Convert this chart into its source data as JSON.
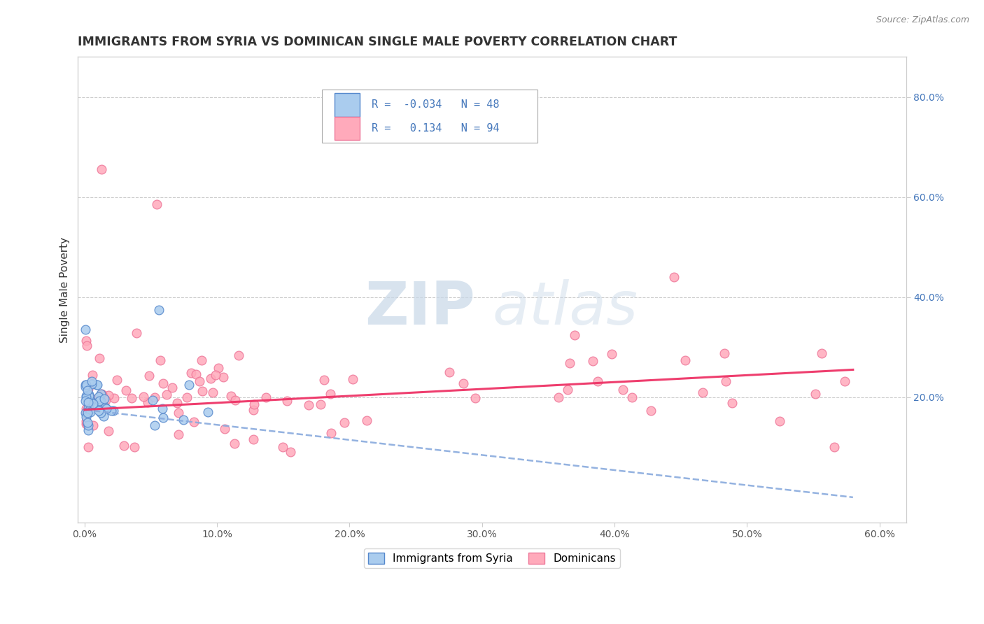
{
  "title": "IMMIGRANTS FROM SYRIA VS DOMINICAN SINGLE MALE POVERTY CORRELATION CHART",
  "source": "Source: ZipAtlas.com",
  "ylabel": "Single Male Poverty",
  "xlim": [
    -0.005,
    0.62
  ],
  "ylim": [
    -0.05,
    0.88
  ],
  "xticks": [
    0.0,
    0.1,
    0.2,
    0.3,
    0.4,
    0.5,
    0.6
  ],
  "xtick_labels": [
    "0.0%",
    "10.0%",
    "20.0%",
    "30.0%",
    "40.0%",
    "50.0%",
    "60.0%"
  ],
  "yticks_left": [
    0.2,
    0.4,
    0.6,
    0.8
  ],
  "yticks_right": [
    0.2,
    0.4,
    0.6,
    0.8
  ],
  "ytick_labels": [
    "20.0%",
    "40.0%",
    "60.0%",
    "80.0%"
  ],
  "grid_color": "#cccccc",
  "background_color": "#ffffff",
  "legend_label1": "Immigrants from Syria",
  "legend_label2": "Dominicans",
  "R1": -0.034,
  "N1": 48,
  "R2": 0.134,
  "N2": 94,
  "color_syria_edge": "#5588cc",
  "color_syria_fill": "#aaccee",
  "color_dom_edge": "#ee7799",
  "color_dom_fill": "#ffaabb",
  "trendline_color_syria": "#88aadd",
  "trendline_color_dom": "#ee3366",
  "text_color_blue": "#4477bb",
  "title_color": "#333333",
  "source_color": "#888888"
}
